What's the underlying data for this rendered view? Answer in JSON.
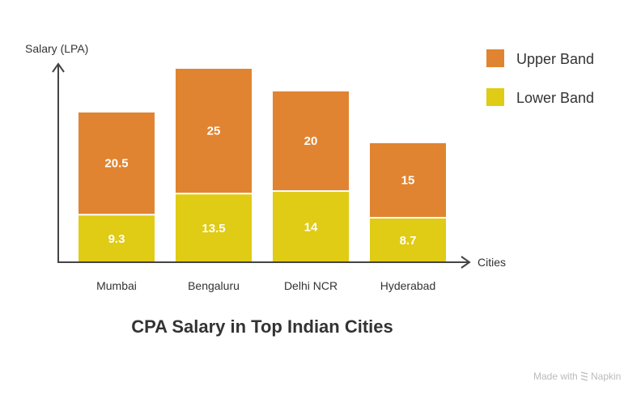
{
  "chart_data": {
    "type": "bar",
    "stacked": true,
    "title": "CPA Salary in Top Indian Cities",
    "xlabel": "Cities",
    "ylabel": "Salary (LPA)",
    "categories": [
      "Mumbai",
      "Bengaluru",
      "Delhi NCR",
      "Hyderabad"
    ],
    "series": [
      {
        "name": "Lower Band",
        "values": [
          9.3,
          13.5,
          14,
          8.7
        ],
        "color": "#E0CB15"
      },
      {
        "name": "Upper Band",
        "values": [
          20.5,
          25,
          20,
          15
        ],
        "color": "#E08431"
      }
    ],
    "ylim": [
      0,
      38.5
    ],
    "grid": false,
    "legend_position": "top-right",
    "axis_color": "#444444"
  },
  "watermark": {
    "text": "Made with",
    "brand": "Napkin"
  }
}
